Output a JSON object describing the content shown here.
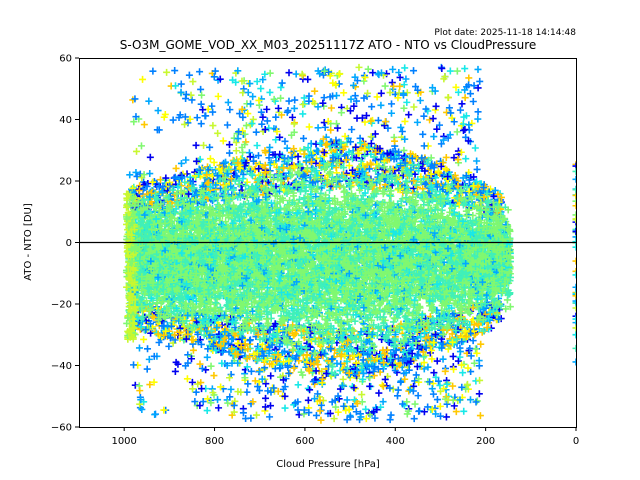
{
  "chart_data": {
    "type": "scatter",
    "title": "S-O3M_GOME_VOD_XX_M03_20251117Z ATO - NTO vs CloudPressure",
    "subtitle": "Plot date: 2025-11-18 14:14:48",
    "xlabel": "Cloud Pressure [hPa]",
    "ylabel": "ATO - NTO [DU]",
    "xlim": [
      1100,
      0
    ],
    "ylim": [
      -60,
      60
    ],
    "x_inverted": true,
    "xticks": [
      1000,
      800,
      600,
      400,
      200,
      0
    ],
    "xtick_labels": [
      "1000",
      "800",
      "600",
      "400",
      "200",
      "0"
    ],
    "yticks": [
      60,
      40,
      20,
      0,
      -20,
      -40,
      -60
    ],
    "ytick_labels": [
      "60",
      "40",
      "20",
      "0",
      "−20",
      "−40",
      "−60"
    ],
    "reference_line": {
      "y": 0,
      "color": "#000000"
    },
    "marker": "+",
    "grid": false,
    "legend": "none",
    "colormap": [
      "#0000f0",
      "#0080ff",
      "#00a8ff",
      "#18e8e8",
      "#40f0b8",
      "#80f870",
      "#c8f830",
      "#ffff00",
      "#ffc800"
    ],
    "clusters": [
      {
        "name": "dense core",
        "x_range": [
          1000,
          150
        ],
        "y_center": -5,
        "y_spread": 22
      },
      {
        "name": "upper outliers",
        "x_range": [
          980,
          250
        ],
        "y_range": [
          20,
          58
        ]
      },
      {
        "name": "lower outliers",
        "x_range": [
          960,
          200
        ],
        "y_range": [
          -60,
          -25
        ]
      },
      {
        "name": "zero-pressure column",
        "x": 0,
        "y_range": [
          -40,
          26
        ]
      }
    ]
  }
}
